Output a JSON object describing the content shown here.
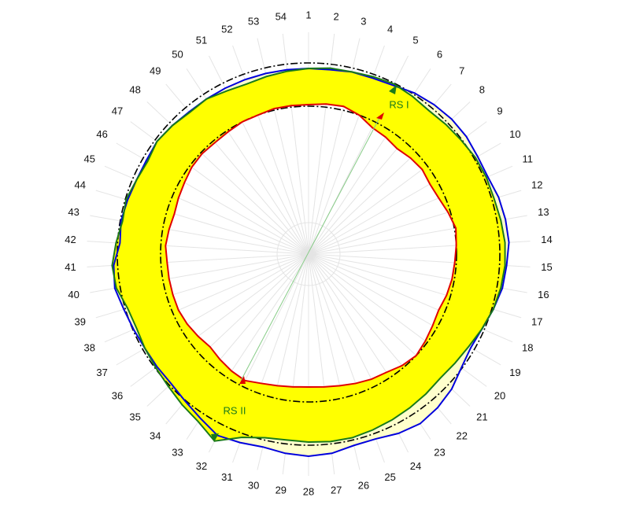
{
  "chart_data": {
    "type": "radar",
    "categories": [
      "1",
      "2",
      "3",
      "4",
      "5",
      "6",
      "7",
      "8",
      "9",
      "10",
      "11",
      "12",
      "13",
      "14",
      "15",
      "16",
      "17",
      "18",
      "19",
      "20",
      "21",
      "22",
      "23",
      "24",
      "25",
      "26",
      "27",
      "28",
      "29",
      "30",
      "31",
      "32",
      "33",
      "34",
      "35",
      "36",
      "37",
      "38",
      "39",
      "40",
      "41",
      "42",
      "43",
      "44",
      "45",
      "46",
      "47",
      "48",
      "49",
      "50",
      "51",
      "52",
      "53",
      "54"
    ],
    "rlim": [
      0,
      300
    ],
    "reference_radii": [
      188,
      243
    ],
    "series": [
      {
        "color": "#0000dd",
        "fill": "#ffffcc",
        "values": [
          236,
          236,
          238,
          238,
          240,
          245,
          248,
          250,
          250,
          248,
          248,
          252,
          254,
          255,
          252,
          250,
          245,
          240,
          238,
          242,
          250,
          255,
          258,
          255,
          250,
          250,
          255,
          257,
          255,
          252,
          255,
          258,
          250,
          244,
          240,
          240,
          240,
          242,
          245,
          250,
          248,
          240,
          242,
          240,
          238,
          238,
          240,
          238,
          236,
          236,
          236,
          236,
          236,
          236
        ]
      },
      {
        "color": "#1a7a1a",
        "fill": "#ffff00",
        "values": [
          236,
          238,
          238,
          240,
          242,
          240,
          238,
          240,
          242,
          245,
          246,
          246,
          248,
          250,
          250,
          248,
          245,
          240,
          235,
          232,
          230,
          232,
          234,
          236,
          238,
          240,
          240,
          239,
          238,
          240,
          248,
          266,
          255,
          250,
          245,
          242,
          240,
          238,
          240,
          248,
          250,
          245,
          240,
          242,
          238,
          236,
          240,
          238,
          235,
          236,
          232,
          230,
          232,
          234
        ]
      },
      {
        "color": "#e00000",
        "fill": "#ffffff",
        "values": [
          190,
          192,
          193,
          188,
          180,
          178,
          175,
          178,
          180,
          178,
          180,
          185,
          190,
          188,
          186,
          185,
          183,
          180,
          182,
          185,
          188,
          185,
          180,
          178,
          175,
          172,
          170,
          169,
          170,
          172,
          175,
          180,
          178,
          175,
          172,
          175,
          178,
          180,
          180,
          180,
          180,
          182,
          180,
          178,
          180,
          182,
          185,
          186,
          185,
          186,
          188,
          188,
          190,
          190
        ]
      }
    ],
    "annotations": [
      "RS I",
      "RS II"
    ]
  }
}
